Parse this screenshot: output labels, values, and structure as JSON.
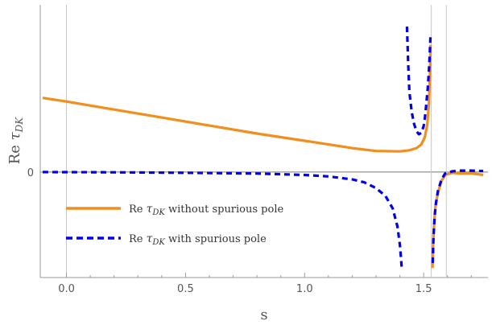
{
  "chart_data": {
    "type": "line",
    "xlabel": "s",
    "ylabel": "Re τDK",
    "ylabel_parts": {
      "prefix": "Re ",
      "symbol": "τ",
      "sub": "DK"
    },
    "xlim": [
      -0.11,
      1.77
    ],
    "ylim": [
      -1.45,
      2.3
    ],
    "x_ticks": [
      0.0,
      0.5,
      1.0,
      1.5
    ],
    "x_tick_labels": [
      "0.0",
      "0.5",
      "1.0",
      "1.5"
    ],
    "y_ticks": [
      0
    ],
    "y_tick_labels": [
      "0"
    ],
    "reference_vlines": [
      0.0,
      1.532,
      1.595
    ],
    "grid": false,
    "legend_position": "bottom-left",
    "series": [
      {
        "name": "Re τDK without spurious pole",
        "name_parts": {
          "prefix": "Re ",
          "symbol": "τ",
          "sub": "DK",
          "suffix": " without spurious pole"
        },
        "style": "solid",
        "color": "#f28e1c",
        "segments": [
          {
            "x": [
              -0.1,
              0.0,
              0.2,
              0.4,
              0.6,
              0.8,
              1.0,
              1.2,
              1.3,
              1.4,
              1.44,
              1.47,
              1.49,
              1.505,
              1.515,
              1.522,
              1.527,
              1.529
            ],
            "y": [
              1.02,
              0.97,
              0.86,
              0.75,
              0.64,
              0.53,
              0.43,
              0.33,
              0.29,
              0.285,
              0.3,
              0.33,
              0.38,
              0.48,
              0.65,
              0.95,
              1.4,
              1.75
            ]
          },
          {
            "x": [
              1.537,
              1.54,
              1.545,
              1.55,
              1.56,
              1.575,
              1.59,
              1.62,
              1.65,
              1.7,
              1.73,
              1.75
            ],
            "y": [
              -1.32,
              -0.95,
              -0.65,
              -0.46,
              -0.28,
              -0.12,
              -0.04,
              -0.01,
              -0.02,
              -0.02,
              -0.03,
              -0.04
            ]
          }
        ]
      },
      {
        "name": "Re τDK with spurious pole",
        "name_parts": {
          "prefix": "Re ",
          "symbol": "τ",
          "sub": "DK",
          "suffix": " with spurious pole"
        },
        "style": "dashed",
        "color": "#0000ee",
        "segments": [
          {
            "x": [
              -0.1,
              0.2,
              0.5,
              0.8,
              1.0,
              1.1,
              1.2,
              1.25,
              1.3,
              1.34,
              1.37,
              1.39,
              1.4,
              1.405,
              1.408
            ],
            "y": [
              0.0,
              -0.003,
              -0.01,
              -0.02,
              -0.04,
              -0.06,
              -0.1,
              -0.14,
              -0.22,
              -0.33,
              -0.5,
              -0.75,
              -1.0,
              -1.2,
              -1.32
            ]
          },
          {
            "x": [
              1.43,
              1.435,
              1.44,
              1.45,
              1.46,
              1.47,
              1.48,
              1.49,
              1.5,
              1.505,
              1.51,
              1.517,
              1.522,
              1.526,
              1.529
            ],
            "y": [
              2.0,
              1.5,
              1.1,
              0.82,
              0.66,
              0.56,
              0.52,
              0.54,
              0.63,
              0.74,
              0.9,
              1.15,
              1.4,
              1.65,
              1.9
            ]
          },
          {
            "x": [
              1.538,
              1.541,
              1.546,
              1.552,
              1.56,
              1.575,
              1.59,
              1.62,
              1.65,
              1.7,
              1.75
            ],
            "y": [
              -1.25,
              -0.9,
              -0.6,
              -0.42,
              -0.26,
              -0.1,
              -0.02,
              0.01,
              0.02,
              0.02,
              0.015
            ]
          }
        ]
      }
    ]
  }
}
